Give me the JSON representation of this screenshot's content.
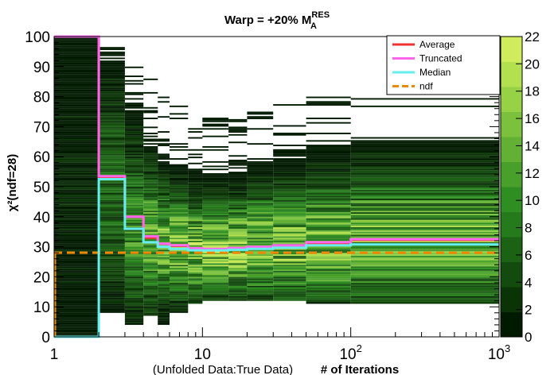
{
  "chart_data": {
    "type": "heatmap",
    "title": "Warp = +20% M",
    "title_sup": "RES",
    "title_sub": "A",
    "xlabel_note": "(Unfolded Data:True Data)",
    "xlabel": "# of Iterations",
    "ylabel": "χ²(ndf=28)",
    "x_scale": "log",
    "xlim": [
      1,
      1000
    ],
    "ylim": [
      0,
      100
    ],
    "zlim": [
      0,
      22
    ],
    "x_ticks": [
      {
        "value": 1,
        "label": "1"
      },
      {
        "value": 10,
        "label": "10"
      },
      {
        "value": 100,
        "label": "10",
        "sup": "2"
      },
      {
        "value": 1000,
        "label": "10",
        "sup": "3"
      }
    ],
    "y_ticks": [
      0,
      10,
      20,
      30,
      40,
      50,
      60,
      70,
      80,
      90,
      100
    ],
    "z_ticks": [
      0,
      2,
      4,
      6,
      8,
      10,
      12,
      14,
      16,
      18,
      20,
      22
    ],
    "colormap": [
      "#001a00",
      "#0a3306",
      "#134a0d",
      "#1c6214",
      "#257a1b",
      "#2f8e22",
      "#48a02b",
      "#62b134",
      "#7cc13d",
      "#97d146",
      "#b2e04f",
      "#d0ec5c"
    ],
    "legend": {
      "placement": "top-right",
      "entries": [
        {
          "name": "Average",
          "color": "#ee3333",
          "style": "solid"
        },
        {
          "name": "Truncated",
          "color": "#ff66ee",
          "style": "solid"
        },
        {
          "name": "Median",
          "color": "#66eeee",
          "style": "solid"
        },
        {
          "name": "ndf",
          "color": "#ee8800",
          "style": "dashed"
        }
      ]
    },
    "ndf": 28,
    "series": [
      {
        "name": "Truncated",
        "x": [
          1,
          2,
          3,
          4,
          5,
          6,
          8,
          10,
          15,
          20,
          30,
          50,
          100,
          1000
        ],
        "y": [
          100,
          53.5,
          40,
          33.5,
          31,
          30.5,
          29.5,
          29.3,
          29.6,
          30,
          30.5,
          31.5,
          32.5,
          33
        ]
      },
      {
        "name": "Average",
        "x": [
          1,
          2,
          3,
          4,
          5,
          6,
          8,
          10,
          15,
          20,
          30,
          50,
          100,
          1000
        ],
        "y": [
          100,
          53,
          40,
          33,
          31,
          30.3,
          29.3,
          29.1,
          29.4,
          29.8,
          30.3,
          31.2,
          32.3,
          32.8
        ]
      },
      {
        "name": "Median",
        "x": [
          1,
          2,
          3,
          4,
          5,
          6,
          8,
          10,
          15,
          20,
          30,
          50,
          100,
          1000
        ],
        "y": [
          0,
          52.5,
          36,
          31.5,
          30,
          29.3,
          28.8,
          28.8,
          29,
          29.3,
          29.7,
          30.5,
          30.8,
          31
        ]
      }
    ],
    "heatmap_columns": [
      {
        "x0": 1,
        "x1": 2,
        "ymin": 0,
        "ymax": 100,
        "center": 45,
        "spread": 40,
        "peak": 2
      },
      {
        "x0": 2,
        "x1": 3,
        "ymin": 8,
        "ymax": 97,
        "center": 48,
        "spread": 22,
        "peak": 8
      },
      {
        "x0": 3,
        "x1": 4,
        "ymin": 4,
        "ymax": 90,
        "center": 36,
        "spread": 18,
        "peak": 12
      },
      {
        "x0": 4,
        "x1": 5,
        "ymin": 7,
        "ymax": 86,
        "center": 33,
        "spread": 14,
        "peak": 15
      },
      {
        "x0": 5,
        "x1": 6,
        "ymin": 4,
        "ymax": 82,
        "center": 31,
        "spread": 12,
        "peak": 17
      },
      {
        "x0": 6,
        "x1": 8,
        "ymin": 8,
        "ymax": 78,
        "center": 30,
        "spread": 11,
        "peak": 19
      },
      {
        "x0": 8,
        "x1": 10,
        "ymin": 11,
        "ymax": 75,
        "center": 29,
        "spread": 10,
        "peak": 20
      },
      {
        "x0": 10,
        "x1": 15,
        "ymin": 12,
        "ymax": 73,
        "center": 29,
        "spread": 10,
        "peak": 20
      },
      {
        "x0": 15,
        "x1": 20,
        "ymin": 12,
        "ymax": 74,
        "center": 29.5,
        "spread": 10,
        "peak": 20
      },
      {
        "x0": 20,
        "x1": 30,
        "ymin": 12,
        "ymax": 76,
        "center": 30,
        "spread": 11,
        "peak": 19
      },
      {
        "x0": 30,
        "x1": 50,
        "ymin": 12,
        "ymax": 78,
        "center": 30.5,
        "spread": 12,
        "peak": 18
      },
      {
        "x0": 50,
        "x1": 100,
        "ymin": 11,
        "ymax": 80,
        "center": 31,
        "spread": 13,
        "peak": 17
      },
      {
        "x0": 100,
        "x1": 1000,
        "ymin": 11,
        "ymax": 81,
        "center": 32,
        "spread": 14,
        "peak": 16
      }
    ]
  }
}
